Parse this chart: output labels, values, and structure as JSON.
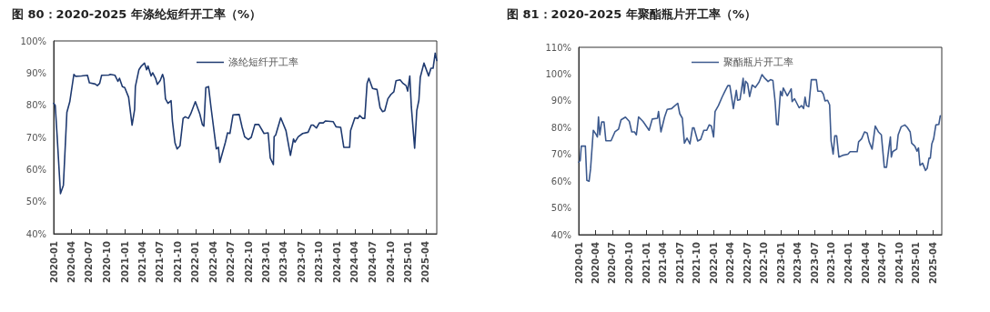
{
  "chart_data": [
    {
      "type": "line",
      "title": "图 80：2020-2025 年涤纶短纤开工率（%）",
      "legend": "top",
      "grid": false,
      "marker": "none",
      "line_style": "solid",
      "xlim": [
        "2020-01-01",
        "2025-05-28"
      ],
      "xticks": [
        "2020-01",
        "2020-04",
        "2020-07",
        "2020-10",
        "2021-01",
        "2021-04",
        "2021-07",
        "2021-10",
        "2022-01",
        "2022-04",
        "2022-07",
        "2022-10",
        "2023-01",
        "2023-04",
        "2023-07",
        "2023-10",
        "2024-01",
        "2024-04",
        "2024-07",
        "2024-10",
        "2025-01",
        "2025-04"
      ],
      "ylim": [
        40,
        100
      ],
      "yticks": [
        {
          "value": 40,
          "label": "40%"
        },
        {
          "value": 50,
          "label": "50%"
        },
        {
          "value": 60,
          "label": "60%"
        },
        {
          "value": 70,
          "label": "70%"
        },
        {
          "value": 80,
          "label": "80%"
        },
        {
          "value": 90,
          "label": "90%"
        },
        {
          "value": 100,
          "label": "100%"
        }
      ],
      "series": [
        {
          "name": "涤纶短纤开工率",
          "color": "#1f3a70",
          "x": [
            "2020-01-01",
            "2020-01-09",
            "2020-01-19",
            "2020-02-05",
            "2020-02-20",
            "2020-03-09",
            "2020-03-24",
            "2020-04-14",
            "2020-04-22",
            "2020-05-23",
            "2020-06-23",
            "2020-07-03",
            "2020-08-02",
            "2020-08-13",
            "2020-08-25",
            "2020-09-04",
            "2020-10-11",
            "2020-10-19",
            "2020-11-12",
            "2020-11-27",
            "2020-12-05",
            "2020-12-20",
            "2021-01-01",
            "2021-01-21",
            "2021-02-08",
            "2021-02-21",
            "2021-02-25",
            "2021-03-15",
            "2021-03-28",
            "2021-04-13",
            "2021-04-24",
            "2021-05-01",
            "2021-05-17",
            "2021-05-25",
            "2021-06-10",
            "2021-06-18",
            "2021-07-03",
            "2021-07-15",
            "2021-07-22",
            "2021-07-30",
            "2021-08-12",
            "2021-08-28",
            "2021-09-04",
            "2021-09-17",
            "2021-09-28",
            "2021-10-13",
            "2021-10-29",
            "2021-11-09",
            "2021-11-25",
            "2021-12-07",
            "2021-12-31",
            "2022-01-23",
            "2022-02-05",
            "2022-02-13",
            "2022-02-23",
            "2022-03-09",
            "2022-03-22",
            "2022-04-18",
            "2022-04-29",
            "2022-05-06",
            "2022-06-04",
            "2022-06-15",
            "2022-06-27",
            "2022-07-13",
            "2022-08-14",
            "2022-08-29",
            "2022-09-11",
            "2022-09-30",
            "2022-10-15",
            "2022-11-03",
            "2022-11-23",
            "2022-12-20",
            "2023-01-10",
            "2023-01-21",
            "2023-02-06",
            "2023-02-10",
            "2023-02-18",
            "2023-03-16",
            "2023-04-12",
            "2023-05-05",
            "2023-05-21",
            "2023-05-28",
            "2023-06-14",
            "2023-07-07",
            "2023-08-04",
            "2023-08-20",
            "2023-08-31",
            "2023-09-16",
            "2023-10-01",
            "2023-10-21",
            "2023-11-02",
            "2023-12-11",
            "2023-12-26",
            "2024-01-19",
            "2024-02-04",
            "2024-03-05",
            "2024-03-10",
            "2024-04-01",
            "2024-04-17",
            "2024-04-26",
            "2024-05-11",
            "2024-05-22",
            "2024-06-03",
            "2024-06-12",
            "2024-07-01",
            "2024-07-24",
            "2024-08-09",
            "2024-08-22",
            "2024-09-02",
            "2024-09-18",
            "2024-10-03",
            "2024-10-19",
            "2024-10-30",
            "2024-11-20",
            "2024-12-05",
            "2024-12-21",
            "2024-12-29",
            "2025-01-09",
            "2025-01-17",
            "2025-02-03",
            "2025-02-14",
            "2025-02-25",
            "2025-03-04",
            "2025-03-23",
            "2025-04-16",
            "2025-04-28",
            "2025-05-09",
            "2025-05-20",
            "2025-05-28"
          ],
          "values": [
            80.6,
            79.9,
            70.2,
            52.5,
            55.1,
            77.8,
            81.1,
            89.6,
            89,
            89.1,
            89.3,
            87,
            86.6,
            86.1,
            86.8,
            89.3,
            89.4,
            89.6,
            89.3,
            87.4,
            88.4,
            85.8,
            85.5,
            82.5,
            73.8,
            78.7,
            85.8,
            91,
            92.2,
            93.1,
            91,
            92.2,
            89.1,
            90.1,
            88.2,
            86.5,
            87.7,
            89.6,
            88.2,
            82,
            80.6,
            81.4,
            75,
            68.3,
            66.4,
            67.4,
            75.9,
            76.4,
            75.9,
            77.3,
            81.1,
            77.3,
            74,
            73.5,
            85.5,
            85.8,
            79.2,
            66.4,
            66.9,
            62.2,
            68.5,
            71.4,
            71.2,
            77,
            77.1,
            73.1,
            70.2,
            69.3,
            70,
            74,
            74,
            71.2,
            71.4,
            63.6,
            61.5,
            70.2,
            70.7,
            76.1,
            72.1,
            64.4,
            69.5,
            68.5,
            70.2,
            71.2,
            71.6,
            73.8,
            73.8,
            72.9,
            74.5,
            74.5,
            75.1,
            74.9,
            73.3,
            73.1,
            66.9,
            66.9,
            72.1,
            76.1,
            75.9,
            76.8,
            75.9,
            75.9,
            86.8,
            88.4,
            85.2,
            84.9,
            79.2,
            78,
            78.3,
            82,
            83.3,
            84.2,
            87.6,
            87.9,
            86.8,
            86.1,
            84.4,
            89.1,
            79.5,
            66.6,
            78.3,
            81.6,
            88.7,
            93.1,
            89.1,
            91.5,
            91.5,
            96.2,
            93.9
          ]
        }
      ]
    },
    {
      "type": "line",
      "title": "图 81：2020-2025 年聚酯瓶片开工率（%）",
      "legend": "top",
      "grid": false,
      "marker": "none",
      "line_style": "solid",
      "xlim": [
        "2020-01-01",
        "2025-05-19"
      ],
      "xticks": [
        "2020-01",
        "2020-04",
        "2020-07",
        "2020-10",
        "2021-01",
        "2021-04",
        "2021-07",
        "2021-10",
        "2022-01",
        "2022-04",
        "2022-07",
        "2022-10",
        "2023-01",
        "2023-04",
        "2023-07",
        "2023-10",
        "2024-01",
        "2024-04",
        "2024-07",
        "2024-10",
        "2025-01",
        "2025-04"
      ],
      "ylim": [
        40,
        110
      ],
      "yticks": [
        {
          "value": 40,
          "label": "40%"
        },
        {
          "value": 50,
          "label": "50%"
        },
        {
          "value": 60,
          "label": "60%"
        },
        {
          "value": 70,
          "label": "70%"
        },
        {
          "value": 80,
          "label": "80%"
        },
        {
          "value": 90,
          "label": "90%"
        },
        {
          "value": 100,
          "label": "100%"
        },
        {
          "value": 110,
          "label": "110%"
        }
      ],
      "series": [
        {
          "name": "聚酯瓶片开工率",
          "color": "#3d5a8e",
          "x": [
            "2020-01-01",
            "2020-01-09",
            "2020-01-15",
            "2020-02-06",
            "2020-02-14",
            "2020-02-26",
            "2020-03-05",
            "2020-03-20",
            "2020-04-03",
            "2020-04-11",
            "2020-04-17",
            "2020-04-24",
            "2020-05-04",
            "2020-05-17",
            "2020-05-27",
            "2020-06-24",
            "2020-07-15",
            "2020-08-04",
            "2020-08-17",
            "2020-09-10",
            "2020-10-01",
            "2020-10-14",
            "2020-10-29",
            "2020-11-08",
            "2020-11-20",
            "2020-12-14",
            "2021-01-16",
            "2021-02-02",
            "2021-03-02",
            "2021-03-08",
            "2021-03-21",
            "2021-04-10",
            "2021-04-24",
            "2021-05-18",
            "2021-05-26",
            "2021-06-20",
            "2021-07-01",
            "2021-07-15",
            "2021-07-26",
            "2021-08-09",
            "2021-08-25",
            "2021-09-08",
            "2021-09-16",
            "2021-10-06",
            "2021-10-22",
            "2021-11-08",
            "2021-11-24",
            "2021-12-07",
            "2021-12-19",
            "2021-12-31",
            "2022-01-08",
            "2022-01-26",
            "2022-02-15",
            "2022-03-01",
            "2022-03-18",
            "2022-03-29",
            "2022-04-17",
            "2022-05-03",
            "2022-05-10",
            "2022-05-23",
            "2022-06-09",
            "2022-06-14",
            "2022-06-22",
            "2022-07-03",
            "2022-07-14",
            "2022-07-28",
            "2022-08-14",
            "2022-09-03",
            "2022-09-19",
            "2022-10-05",
            "2022-10-22",
            "2022-11-04",
            "2022-11-17",
            "2022-11-29",
            "2022-12-07",
            "2022-12-15",
            "2022-12-28",
            "2023-01-06",
            "2023-01-12",
            "2023-02-03",
            "2023-02-24",
            "2023-03-01",
            "2023-03-14",
            "2023-04-08",
            "2023-04-21",
            "2023-05-02",
            "2023-05-10",
            "2023-05-18",
            "2023-05-30",
            "2023-06-13",
            "2023-07-10",
            "2023-07-18",
            "2023-08-06",
            "2023-08-17",
            "2023-08-26",
            "2023-09-09",
            "2023-09-20",
            "2023-09-28",
            "2023-10-09",
            "2023-10-18",
            "2023-10-28",
            "2023-11-09",
            "2023-12-03",
            "2023-12-28",
            "2024-01-09",
            "2024-02-16",
            "2024-02-24",
            "2024-03-11",
            "2024-03-27",
            "2024-04-10",
            "2024-04-21",
            "2024-05-07",
            "2024-05-24",
            "2024-06-10",
            "2024-06-26",
            "2024-07-12",
            "2024-07-24",
            "2024-08-06",
            "2024-08-14",
            "2024-08-19",
            "2024-08-26",
            "2024-09-17",
            "2024-09-25",
            "2024-10-11",
            "2024-10-31",
            "2024-11-13",
            "2024-11-29",
            "2024-12-07",
            "2024-12-24",
            "2025-01-05",
            "2025-01-13",
            "2025-01-21",
            "2025-02-04",
            "2025-02-20",
            "2025-03-01",
            "2025-03-11",
            "2025-03-18",
            "2025-03-26",
            "2025-04-05",
            "2025-04-17",
            "2025-05-03",
            "2025-05-11"
          ],
          "values": [
            67.1,
            67.7,
            73.1,
            73.1,
            60.3,
            60,
            64.5,
            79,
            77.6,
            76.5,
            84,
            77.3,
            82.1,
            82.1,
            75.1,
            75.1,
            78.4,
            79.5,
            82.9,
            83.9,
            82.3,
            78.4,
            78.4,
            77.3,
            84,
            82.3,
            79,
            83.2,
            83.5,
            86,
            78.4,
            84,
            86.8,
            87.1,
            87.6,
            89.1,
            85.2,
            83.5,
            74.2,
            76.1,
            73.9,
            79.9,
            79.9,
            75,
            75.6,
            79,
            79,
            81,
            80.6,
            76.5,
            86,
            88.2,
            91.4,
            93.4,
            95.7,
            95.7,
            87.1,
            93.9,
            90.2,
            90.5,
            98.4,
            92.8,
            97.3,
            96.5,
            91.6,
            95.9,
            95,
            97,
            99.8,
            98.4,
            97.2,
            97.9,
            97.6,
            89.7,
            81.2,
            81,
            93.6,
            91.9,
            94.8,
            91.9,
            94.5,
            89.7,
            90.8,
            87.4,
            88.2,
            87.1,
            91.4,
            88.2,
            87.8,
            97.9,
            97.9,
            93.6,
            93.6,
            92.5,
            90,
            90.2,
            88.5,
            75,
            70.1,
            76.9,
            76.9,
            69,
            69.7,
            70.1,
            71,
            71,
            74.7,
            75.8,
            78.4,
            78,
            74.7,
            72,
            80.6,
            78.4,
            77.3,
            65.2,
            65.2,
            72.5,
            76.5,
            69,
            71,
            72,
            77.3,
            80.3,
            81,
            80.1,
            78.4,
            74.2,
            73.1,
            71.2,
            72.4,
            65.9,
            66.7,
            64,
            64.8,
            68.6,
            68.6,
            73.9,
            75.8,
            81,
            81.2,
            84.4
          ]
        }
      ]
    }
  ]
}
